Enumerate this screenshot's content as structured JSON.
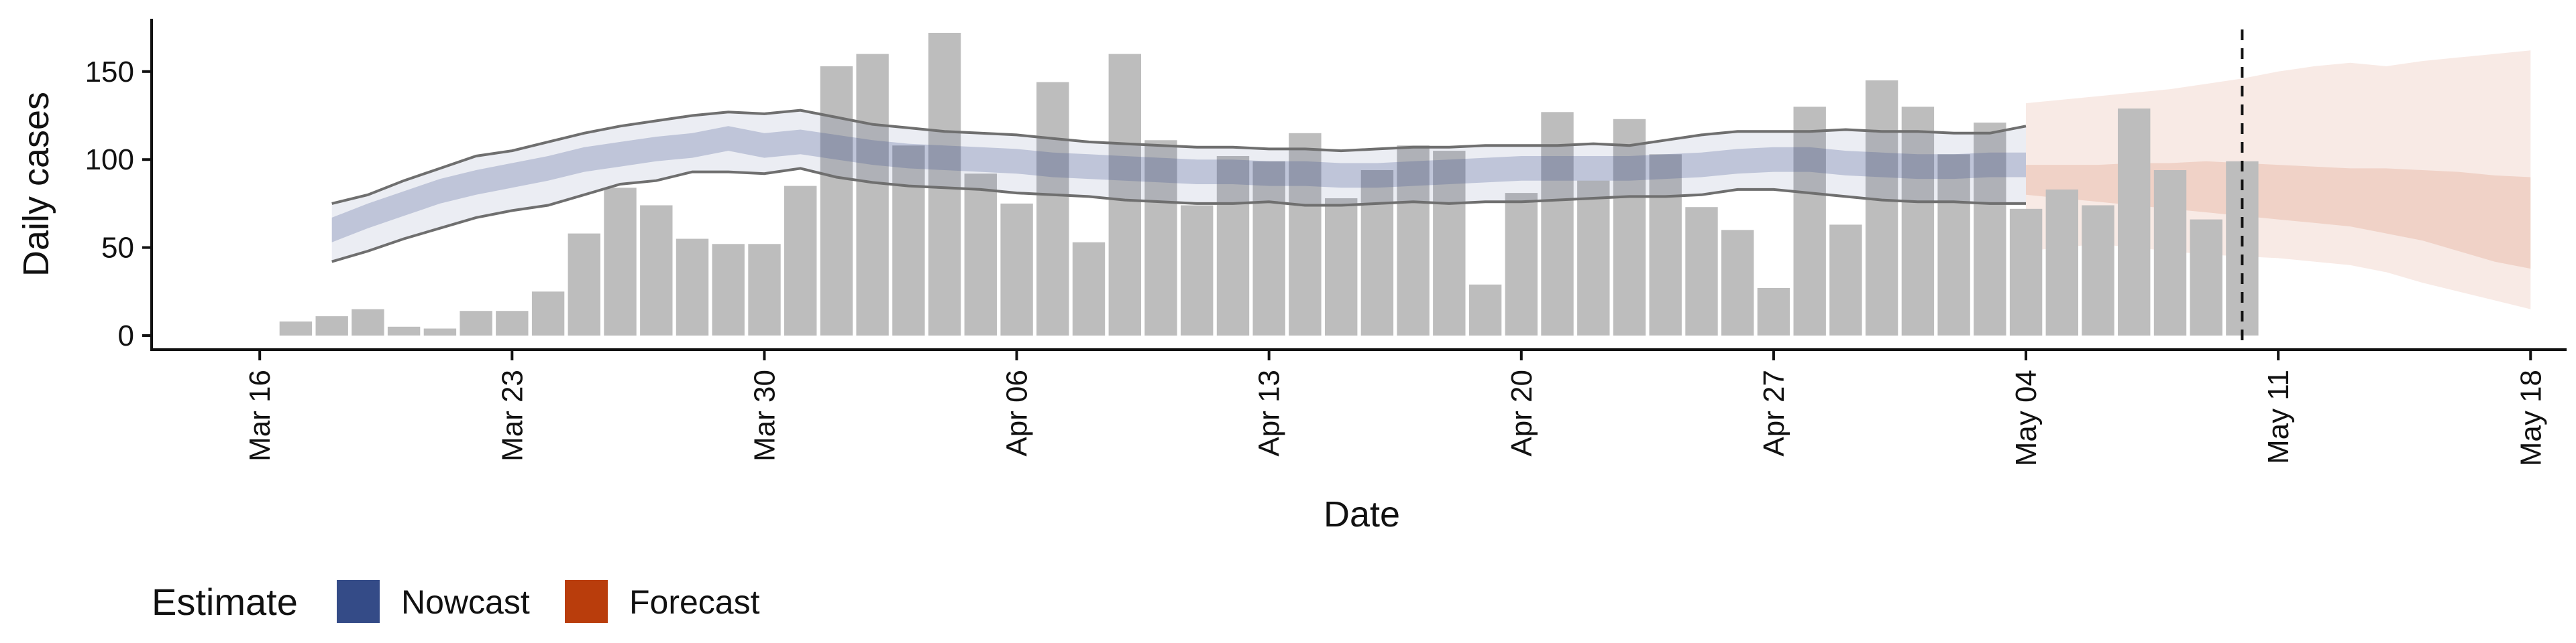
{
  "chart_data": {
    "type": "bar",
    "xlabel": "Date",
    "ylabel": "Daily cases",
    "ylim": [
      -8,
      180
    ],
    "xlim": [
      "2020-03-13",
      "2020-05-19"
    ],
    "y_ticks": [
      0,
      50,
      100,
      150
    ],
    "x_ticks": [
      {
        "date": "2020-03-16",
        "label": "Mar 16"
      },
      {
        "date": "2020-03-23",
        "label": "Mar 23"
      },
      {
        "date": "2020-03-30",
        "label": "Mar 30"
      },
      {
        "date": "2020-04-06",
        "label": "Apr 06"
      },
      {
        "date": "2020-04-13",
        "label": "Apr 13"
      },
      {
        "date": "2020-04-20",
        "label": "Apr 20"
      },
      {
        "date": "2020-04-27",
        "label": "Apr 27"
      },
      {
        "date": "2020-05-04",
        "label": "May 04"
      },
      {
        "date": "2020-05-11",
        "label": "May 11"
      },
      {
        "date": "2020-05-18",
        "label": "May 18"
      }
    ],
    "grid": false,
    "bars": {
      "start_date": "2020-03-17",
      "color": "#bdbdbd",
      "values": [
        8,
        11,
        15,
        5,
        4,
        14,
        14,
        25,
        58,
        84,
        74,
        55,
        52,
        52,
        85,
        153,
        160,
        108,
        172,
        92,
        75,
        144,
        53,
        160,
        111,
        74,
        102,
        99,
        115,
        78,
        94,
        108,
        105,
        29,
        81,
        127,
        88,
        123,
        103,
        73,
        60,
        27,
        130,
        63,
        145,
        130,
        103,
        121,
        72,
        83,
        74,
        129,
        94,
        66,
        99
      ]
    },
    "nowcast": {
      "start_date": "2020-03-18",
      "median": [
        60,
        68,
        75,
        82,
        87,
        91,
        95,
        100,
        103,
        106,
        108,
        112,
        108,
        110,
        107,
        104,
        102,
        101,
        100,
        99,
        97,
        96,
        95,
        94,
        93,
        93,
        92,
        92,
        91,
        91,
        92,
        93,
        94,
        95,
        95,
        95,
        95,
        96,
        97,
        99,
        100,
        100,
        98,
        97,
        96,
        96,
        97,
        97
      ],
      "inner_lower": [
        53,
        61,
        68,
        75,
        80,
        84,
        88,
        93,
        96,
        99,
        101,
        105,
        101,
        103,
        100,
        97,
        95,
        94,
        93,
        92,
        90,
        89,
        88,
        87,
        86,
        86,
        85,
        85,
        84,
        84,
        85,
        86,
        87,
        88,
        88,
        88,
        88,
        89,
        90,
        92,
        93,
        93,
        91,
        90,
        89,
        89,
        90,
        90
      ],
      "inner_upper": [
        67,
        75,
        82,
        89,
        94,
        98,
        102,
        107,
        110,
        113,
        115,
        119,
        115,
        117,
        114,
        111,
        109,
        108,
        107,
        106,
        104,
        103,
        102,
        101,
        100,
        100,
        99,
        99,
        98,
        98,
        99,
        100,
        101,
        102,
        102,
        102,
        102,
        103,
        104,
        106,
        107,
        107,
        105,
        104,
        103,
        103,
        104,
        104
      ],
      "outer_lower": [
        42,
        48,
        55,
        61,
        67,
        71,
        74,
        80,
        86,
        88,
        93,
        93,
        92,
        95,
        90,
        87,
        85,
        84,
        83,
        81,
        80,
        79,
        77,
        76,
        75,
        75,
        76,
        74,
        74,
        75,
        76,
        75,
        76,
        76,
        77,
        78,
        79,
        79,
        80,
        83,
        83,
        81,
        79,
        77,
        76,
        76,
        75,
        75
      ],
      "outer_upper": [
        75,
        80,
        88,
        95,
        102,
        105,
        110,
        115,
        119,
        122,
        125,
        127,
        126,
        128,
        124,
        120,
        118,
        116,
        115,
        114,
        112,
        110,
        109,
        108,
        107,
        107,
        106,
        106,
        105,
        106,
        107,
        107,
        108,
        108,
        108,
        109,
        108,
        111,
        114,
        116,
        116,
        116,
        117,
        116,
        116,
        115,
        115,
        119
      ],
      "band_color": "#3b4f8a",
      "line_color": "#6f6f6f"
    },
    "forecast": {
      "start_date": "2020-05-04",
      "inner_lower": [
        80,
        78,
        76,
        74,
        72,
        70,
        68,
        66,
        64,
        62,
        58,
        54,
        48,
        42,
        38
      ],
      "inner_upper": [
        97,
        97,
        97,
        98,
        98,
        99,
        98,
        97,
        96,
        95,
        95,
        94,
        93,
        91,
        90
      ],
      "outer_lower": [
        48,
        50,
        52,
        50,
        48,
        46,
        45,
        44,
        42,
        40,
        36,
        30,
        25,
        20,
        15
      ],
      "outer_upper": [
        132,
        134,
        136,
        138,
        140,
        143,
        146,
        150,
        153,
        155,
        153,
        156,
        158,
        160,
        162
      ],
      "band_color": "#c7552a"
    },
    "vline_date": "2020-05-10",
    "legend": {
      "position": "bottom-left",
      "title": "Estimate",
      "entries": [
        {
          "label": "Nowcast",
          "color": "#344b87"
        },
        {
          "label": "Forecast",
          "color": "#b93d0c"
        }
      ]
    }
  }
}
